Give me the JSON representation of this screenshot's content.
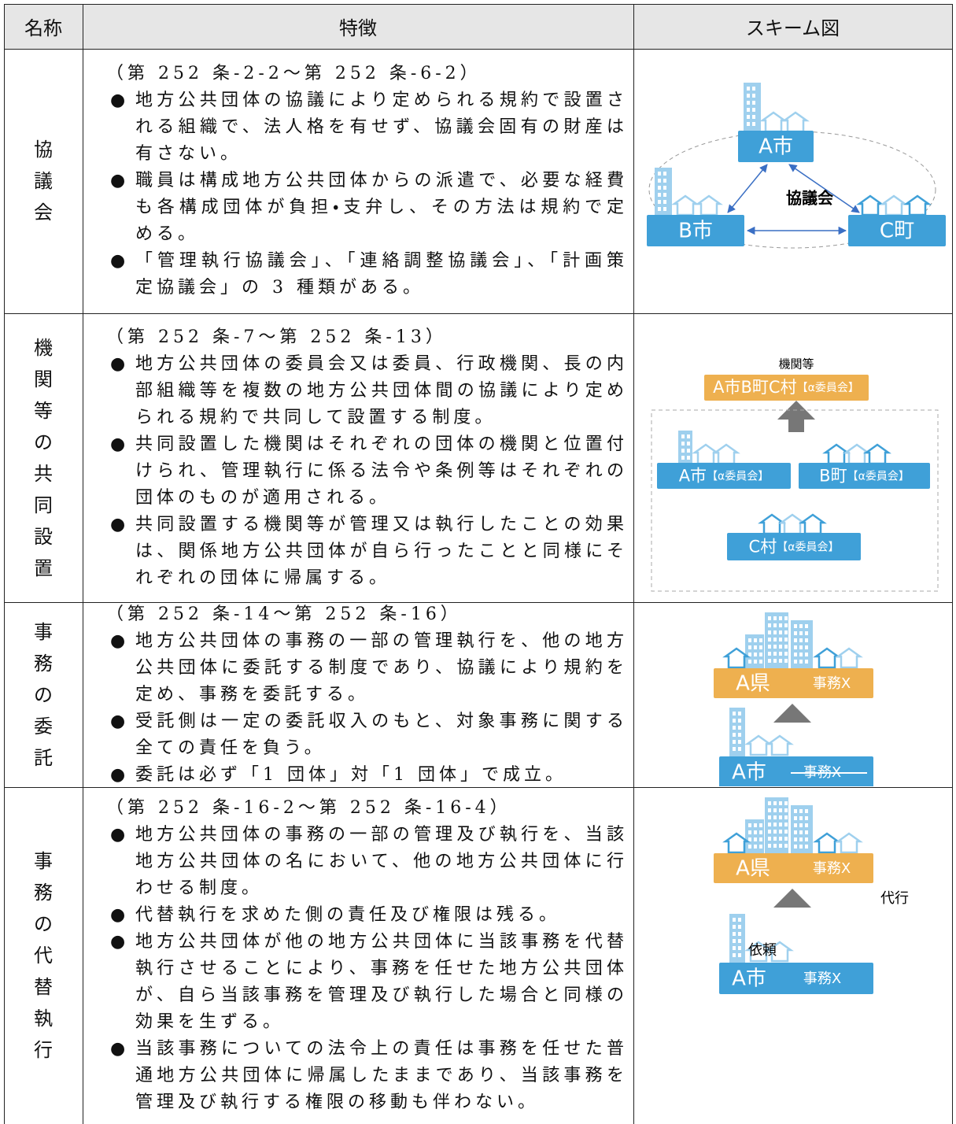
{
  "header": {
    "name": "名称",
    "features": "特徴",
    "scheme": "スキーム図"
  },
  "rows": [
    {
      "name": "協議会",
      "citation": "（第 252 条-2-2～第 252 条-6-2）",
      "bullets": [
        "地方公共団体の協議により定められる規約で設置される組織で、法人格を有せず、協議会固有の財産は有さない。",
        "職員は構成地方公共団体からの派遣で、必要な経費も各構成団体が負担・支弁し、その方法は規約で定める。",
        "「管理執行協議会」、「連絡調整協議会」、「計画策定協議会」の 3 種類がある。"
      ],
      "scheme": {
        "a": "A市",
        "b": "B市",
        "c": "C町",
        "center": "協議会"
      }
    },
    {
      "name": "機関等の共同設置",
      "citation": "（第 252 条-7～第 252 条-13）",
      "bullets": [
        "地方公共団体の委員会又は委員、行政機関、長の内部組織等を複数の地方公共団体間の協議により定められる規約で共同して設置する制度。",
        "共同設置した機関はそれぞれの団体の機関と位置付けられ、管理執行に係る法令や条例等はそれぞれの団体のものが適用される。",
        "共同設置する機関等が管理又は執行したことの効果は、関係地方公共団体が自ら行ったことと同様にそれぞれの団体に帰属する。"
      ],
      "scheme": {
        "title": "機関等",
        "joint": {
          "org": "A市B町C村",
          "committee": "【α委員会】"
        },
        "a": {
          "org": "A市",
          "committee": "【α委員会】"
        },
        "b": {
          "org": "B町",
          "committee": "【α委員会】"
        },
        "c": {
          "org": "C村",
          "committee": "【α委員会】"
        }
      }
    },
    {
      "name": "事務の委託",
      "citation": "（第 252 条-14～第 252 条-16）",
      "bullets": [
        "地方公共団体の事務の一部の管理執行を、他の地方公共団体に委託する制度であり、協議により規約を定め、事務を委託する。",
        "受託側は一定の委託収入のもと、対象事務に関する全ての責任を負う。",
        "委託は必ず「1 団体」対「1 団体」で成立。"
      ],
      "scheme": {
        "top": {
          "org": "A県",
          "task": "事務X"
        },
        "bottom": {
          "org": "A市",
          "task": "事務X"
        }
      }
    },
    {
      "name": "事務の代替執行",
      "citation": "（第 252 条-16-2～第 252 条-16-4）",
      "bullets": [
        "地方公共団体の事務の一部の管理及び執行を、当該地方公共団体の名において、他の地方公共団体に行わせる制度。",
        "代替執行を求めた側の責任及び権限は残る。",
        "地方公共団体が他の地方公共団体に当該事務を代替執行させることにより、事務を任せた地方公共団体が、自ら当該事務を管理及び執行した場合と同様の効果を生ずる。",
        "当該事務についての法令上の責任は事務を任せた普通地方公共団体に帰属したままであり、当該事務を管理及び執行する権限の移動も伴わない。"
      ],
      "scheme": {
        "top": {
          "org": "A県",
          "task": "事務X"
        },
        "act": "代行",
        "request": "依頼",
        "bottom": {
          "org": "A市",
          "task": "事務X"
        }
      }
    }
  ]
}
